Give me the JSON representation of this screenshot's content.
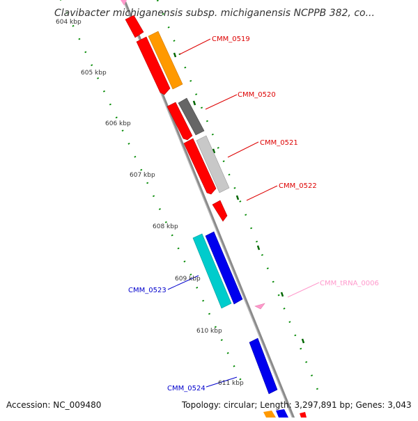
{
  "header": {
    "title": "Clavibacter michiganensis subsp. michiganensis NCPPB 382, co..."
  },
  "footer": {
    "accession": "Accession: NC_009480",
    "topology": "Topology: circular; Length: 3,297,891 bp; Genes: 3,043"
  },
  "ruler": {
    "ticks": [
      "604 kbp",
      "605 kbp",
      "606 kbp",
      "607 kbp",
      "608 kbp",
      "609 kbp",
      "610 kbp",
      "611 kbp"
    ]
  },
  "genes": {
    "labels": [
      "CMM_0519",
      "CMM_0520",
      "CMM_0521",
      "CMM_0522",
      "CMM_tRNA_0006",
      "CMM_0523",
      "CMM_0524"
    ]
  },
  "colors": {
    "red": "#ff0000",
    "orange": "#ff9900",
    "dark_gray": "#666666",
    "light_gray": "#c8c8c8",
    "blue": "#0000ee",
    "cyan": "#00cccc",
    "pink": "#ff99cc",
    "axis": "#888888",
    "tick_green": "#008800"
  }
}
